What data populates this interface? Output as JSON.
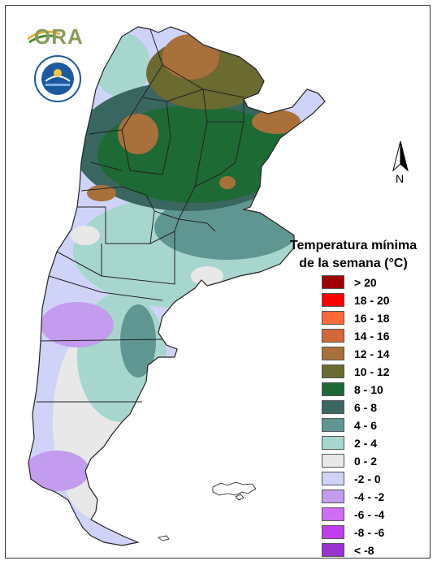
{
  "map": {
    "title_line1": "Temperatura mínima",
    "title_line2": "de la semana (°C)",
    "north_label": "N",
    "logo_text": "ORA",
    "legend": [
      {
        "label": "> 20",
        "color": "#a00000"
      },
      {
        "label": "18 - 20",
        "color": "#ff0000"
      },
      {
        "label": "16 - 18",
        "color": "#ff6a3a"
      },
      {
        "label": "14 - 16",
        "color": "#d2683a"
      },
      {
        "label": "12 - 14",
        "color": "#a8703a"
      },
      {
        "label": "10 - 12",
        "color": "#6b6a30"
      },
      {
        "label": "8 - 10",
        "color": "#1e6a35"
      },
      {
        "label": "6 - 8",
        "color": "#3a6660"
      },
      {
        "label": "4 - 6",
        "color": "#5f9692"
      },
      {
        "label": "2 - 4",
        "color": "#a7d6cf"
      },
      {
        "label": "0 - 2",
        "color": "#e8e8e8"
      },
      {
        "label": "-2 - 0",
        "color": "#cfd3f7"
      },
      {
        "label": "-4 - -2",
        "color": "#c39cf0"
      },
      {
        "label": "-6 - -4",
        "color": "#cf6df5"
      },
      {
        "label": "-8 - -6",
        "color": "#c23cf0"
      },
      {
        "label": "< -8",
        "color": "#9a32d0"
      }
    ]
  }
}
